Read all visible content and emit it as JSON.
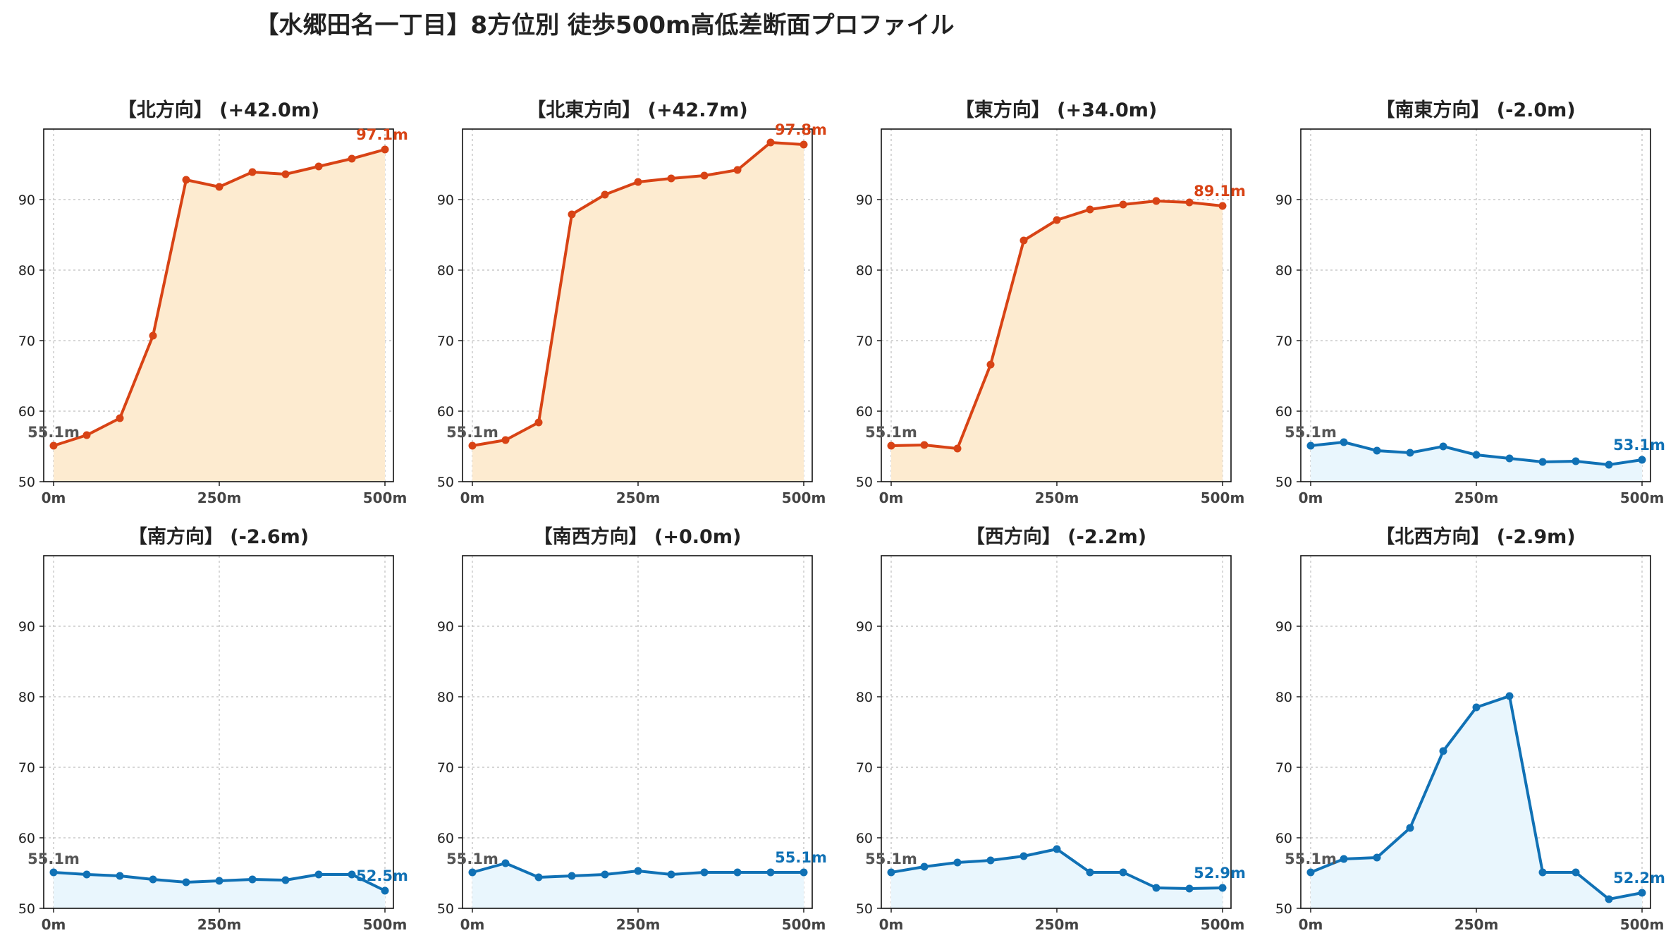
{
  "title": "【水郷田名一丁目】8方位別 徒歩500m高低差断面プロファイル",
  "colors": {
    "up_line": "#d84315",
    "up_fill": "#fdebd0",
    "down_line": "#1071b5",
    "down_fill": "#e9f6fd",
    "start_label": "#555555"
  },
  "chart_data": [
    {
      "type": "area",
      "title": "【北方向】 (+42.0m)",
      "trend": "up",
      "x": [
        0,
        50,
        100,
        150,
        200,
        250,
        300,
        350,
        400,
        450,
        500
      ],
      "values": [
        55.1,
        56.6,
        59.0,
        70.7,
        92.8,
        91.8,
        93.9,
        93.6,
        94.7,
        95.8,
        97.1
      ],
      "start_label": "55.1m",
      "end_label": "97.1m",
      "xticks": [
        "0m",
        "250m",
        "500m"
      ],
      "yticks": [
        "50",
        "60",
        "70",
        "80",
        "90"
      ],
      "ylim": [
        50,
        100
      ],
      "grid": true
    },
    {
      "type": "area",
      "title": "【北東方向】 (+42.7m)",
      "trend": "up",
      "x": [
        0,
        50,
        100,
        150,
        200,
        250,
        300,
        350,
        400,
        450,
        500
      ],
      "values": [
        55.1,
        55.9,
        58.4,
        87.9,
        90.7,
        92.5,
        93.0,
        93.4,
        94.2,
        98.1,
        97.8
      ],
      "start_label": "55.1m",
      "end_label": "97.8m",
      "xticks": [
        "0m",
        "250m",
        "500m"
      ],
      "yticks": [
        "50",
        "60",
        "70",
        "80",
        "90"
      ],
      "ylim": [
        50,
        100
      ],
      "grid": true
    },
    {
      "type": "area",
      "title": "【東方向】 (+34.0m)",
      "trend": "up",
      "x": [
        0,
        50,
        100,
        150,
        200,
        250,
        300,
        350,
        400,
        450,
        500
      ],
      "values": [
        55.1,
        55.2,
        54.7,
        66.6,
        84.2,
        87.1,
        88.6,
        89.3,
        89.8,
        89.6,
        89.1
      ],
      "start_label": "55.1m",
      "end_label": "89.1m",
      "xticks": [
        "0m",
        "250m",
        "500m"
      ],
      "yticks": [
        "50",
        "60",
        "70",
        "80",
        "90"
      ],
      "ylim": [
        50,
        100
      ],
      "grid": true
    },
    {
      "type": "area",
      "title": "【南東方向】 (-2.0m)",
      "trend": "down",
      "x": [
        0,
        50,
        100,
        150,
        200,
        250,
        300,
        350,
        400,
        450,
        500
      ],
      "values": [
        55.1,
        55.6,
        54.4,
        54.1,
        55.0,
        53.8,
        53.3,
        52.8,
        52.9,
        52.4,
        53.1
      ],
      "start_label": "55.1m",
      "end_label": "53.1m",
      "xticks": [
        "0m",
        "250m",
        "500m"
      ],
      "yticks": [
        "50",
        "60",
        "70",
        "80",
        "90"
      ],
      "ylim": [
        50,
        100
      ],
      "grid": true
    },
    {
      "type": "area",
      "title": "【南方向】 (-2.6m)",
      "trend": "down",
      "x": [
        0,
        50,
        100,
        150,
        200,
        250,
        300,
        350,
        400,
        450,
        500
      ],
      "values": [
        55.1,
        54.8,
        54.6,
        54.1,
        53.7,
        53.9,
        54.1,
        54.0,
        54.8,
        54.8,
        52.5
      ],
      "start_label": "55.1m",
      "end_label": "52.5m",
      "xticks": [
        "0m",
        "250m",
        "500m"
      ],
      "yticks": [
        "50",
        "60",
        "70",
        "80",
        "90"
      ],
      "ylim": [
        50,
        100
      ],
      "grid": true
    },
    {
      "type": "area",
      "title": "【南西方向】 (+0.0m)",
      "trend": "down",
      "x": [
        0,
        50,
        100,
        150,
        200,
        250,
        300,
        350,
        400,
        450,
        500
      ],
      "values": [
        55.1,
        56.4,
        54.4,
        54.6,
        54.8,
        55.3,
        54.8,
        55.1,
        55.1,
        55.1,
        55.1
      ],
      "start_label": "55.1m",
      "end_label": "55.1m",
      "xticks": [
        "0m",
        "250m",
        "500m"
      ],
      "yticks": [
        "50",
        "60",
        "70",
        "80",
        "90"
      ],
      "ylim": [
        50,
        100
      ],
      "grid": true
    },
    {
      "type": "area",
      "title": "【西方向】 (-2.2m)",
      "trend": "down",
      "x": [
        0,
        50,
        100,
        150,
        200,
        250,
        300,
        350,
        400,
        450,
        500
      ],
      "values": [
        55.1,
        55.9,
        56.5,
        56.8,
        57.4,
        58.4,
        55.1,
        55.1,
        52.9,
        52.8,
        52.9
      ],
      "start_label": "55.1m",
      "end_label": "52.9m",
      "xticks": [
        "0m",
        "250m",
        "500m"
      ],
      "yticks": [
        "50",
        "60",
        "70",
        "80",
        "90"
      ],
      "ylim": [
        50,
        100
      ],
      "grid": true
    },
    {
      "type": "area",
      "title": "【北西方向】 (-2.9m)",
      "trend": "down",
      "x": [
        0,
        50,
        100,
        150,
        200,
        250,
        300,
        350,
        400,
        450,
        500
      ],
      "values": [
        55.1,
        57.0,
        57.2,
        61.4,
        72.3,
        78.5,
        80.1,
        55.1,
        55.1,
        51.3,
        52.2
      ],
      "start_label": "55.1m",
      "end_label": "52.2m",
      "xticks": [
        "0m",
        "250m",
        "500m"
      ],
      "yticks": [
        "50",
        "60",
        "70",
        "80",
        "90"
      ],
      "ylim": [
        50,
        100
      ],
      "grid": true
    }
  ]
}
